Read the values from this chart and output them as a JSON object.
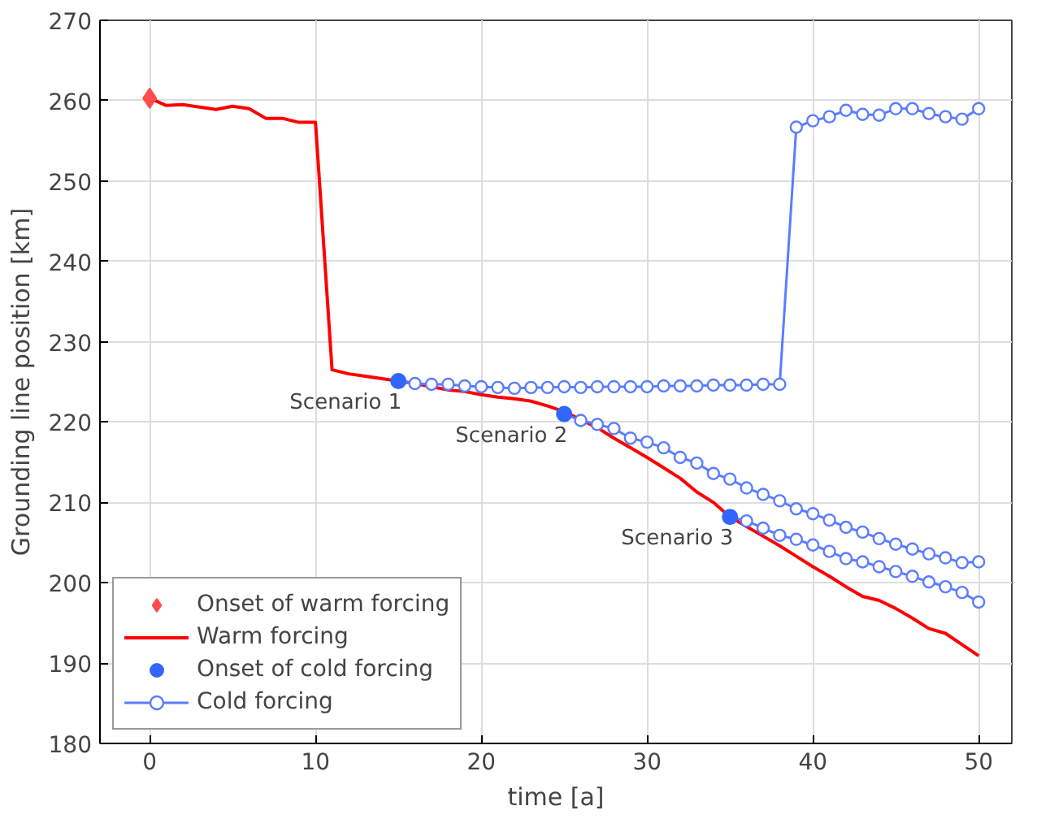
{
  "chart_data": {
    "type": "line",
    "xlabel": "time [a]",
    "ylabel": "Grounding line position [km]",
    "xlim": [
      -3,
      52
    ],
    "ylim": [
      180,
      270
    ],
    "xticks": [
      0,
      10,
      20,
      30,
      40,
      50
    ],
    "yticks": [
      180,
      190,
      200,
      210,
      220,
      230,
      240,
      250,
      260,
      270
    ],
    "grid": true,
    "legend": "bottom left",
    "series": [
      {
        "name": "Onset of warm forcing",
        "type": "scatter",
        "marker": "diamond",
        "color": "#ff4d4d",
        "x": [
          0
        ],
        "values": [
          260.3
        ]
      },
      {
        "name": "Warm forcing",
        "marker": "none",
        "color": "#ff0000",
        "x": [
          0,
          1,
          2,
          3,
          4,
          5,
          6,
          7,
          8,
          9,
          10,
          11,
          12,
          13,
          14,
          15,
          16,
          17,
          18,
          19,
          20,
          21,
          22,
          23,
          24,
          25,
          26,
          27,
          28,
          29,
          30,
          31,
          32,
          33,
          34,
          35,
          36,
          37,
          38,
          39,
          40,
          41,
          42,
          43,
          44,
          45,
          46,
          47,
          48,
          49,
          50
        ],
        "values": [
          260.3,
          259.4,
          259.5,
          259.2,
          258.9,
          259.3,
          259.0,
          257.8,
          257.8,
          257.3,
          257.3,
          226.5,
          226.0,
          225.7,
          225.4,
          225.1,
          224.8,
          224.4,
          224.0,
          223.8,
          223.4,
          223.1,
          222.9,
          222.6,
          222.0,
          221.3,
          220.3,
          219.3,
          218.0,
          216.8,
          215.6,
          214.3,
          213.0,
          211.3,
          210.0,
          208.2,
          207.0,
          205.8,
          204.6,
          203.3,
          202.0,
          200.8,
          199.5,
          198.3,
          197.8,
          196.8,
          195.6,
          194.3,
          193.7,
          192.3,
          190.9
        ]
      },
      {
        "name": "Onset of cold forcing",
        "type": "scatter",
        "marker": "circle",
        "color": "#3366ff",
        "x": [
          15,
          25,
          35
        ],
        "values": [
          225.1,
          221.0,
          208.2
        ]
      },
      {
        "name": "Cold forcing",
        "marker": "circle",
        "color": "#5a7dff",
        "x": [
          15,
          16,
          17,
          18,
          19,
          20,
          21,
          22,
          23,
          24,
          25,
          26,
          27,
          28,
          29,
          30,
          31,
          32,
          33,
          34,
          35,
          36,
          37,
          38,
          39,
          40,
          41,
          42,
          43,
          44,
          45,
          46,
          47,
          48,
          49,
          50
        ],
        "values": [
          225.1,
          224.8,
          224.7,
          224.7,
          224.5,
          224.4,
          224.3,
          224.2,
          224.3,
          224.3,
          224.4,
          224.3,
          224.4,
          224.4,
          224.4,
          224.4,
          224.5,
          224.5,
          224.5,
          224.6,
          224.6,
          224.6,
          224.7,
          224.7,
          256.7,
          257.5,
          258.0,
          258.8,
          258.3,
          258.2,
          259.0,
          259.0,
          258.4,
          258.0,
          257.7,
          259.0
        ]
      },
      {
        "marker": "circle",
        "color": "#5a7dff",
        "x": [
          25,
          26,
          27,
          28,
          29,
          30,
          31,
          32,
          33,
          34,
          35,
          36,
          37,
          38,
          39,
          40,
          41,
          42,
          43,
          44,
          45,
          46,
          47,
          48,
          49,
          50
        ],
        "values": [
          221.0,
          220.2,
          219.7,
          219.2,
          218.0,
          217.5,
          216.8,
          215.6,
          214.9,
          213.6,
          212.9,
          211.8,
          211.0,
          210.2,
          209.2,
          208.6,
          207.8,
          206.9,
          206.3,
          205.5,
          204.8,
          204.2,
          203.6,
          203.1,
          202.5,
          202.6
        ]
      },
      {
        "marker": "circle",
        "color": "#5a7dff",
        "x": [
          35,
          36,
          37,
          38,
          39,
          40,
          41,
          42,
          43,
          44,
          45,
          46,
          47,
          48,
          49,
          50
        ],
        "values": [
          208.2,
          207.7,
          206.8,
          205.9,
          205.4,
          204.7,
          203.9,
          203.0,
          202.6,
          202.0,
          201.4,
          200.8,
          200.1,
          199.5,
          198.8,
          197.6
        ]
      }
    ],
    "annotations": [
      {
        "text": "Scenario 1",
        "x": 15,
        "y": 225.1
      },
      {
        "text": "Scenario 2",
        "x": 25,
        "y": 221.0
      },
      {
        "text": "Scenario 3",
        "x": 35,
        "y": 208.2
      }
    ]
  }
}
